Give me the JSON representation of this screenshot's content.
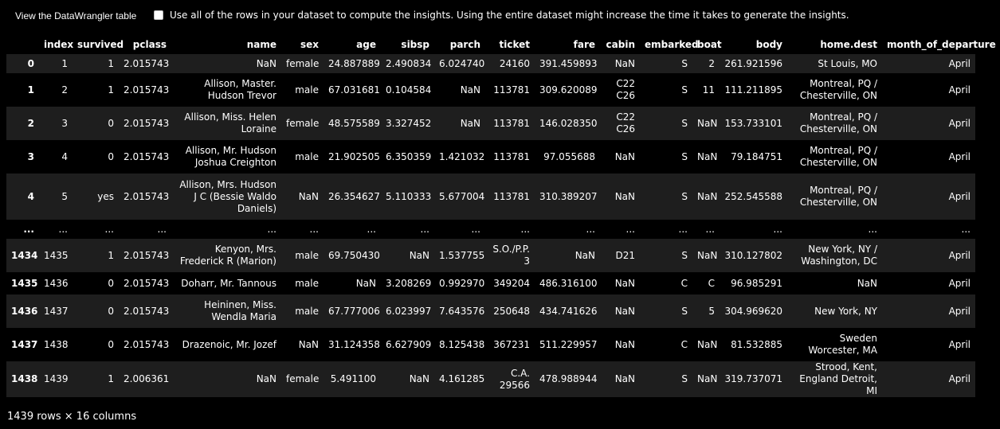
{
  "toolbar": {
    "view_button_label": "View the DataWrangler table",
    "checkbox_label": "Use all of the rows in your dataset to compute the insights. Using the entire dataset might increase the time it takes to generate the insights."
  },
  "table": {
    "columns": [
      "",
      "index",
      "survived",
      "pclass",
      "name",
      "sex",
      "age",
      "sibsp",
      "parch",
      "ticket",
      "fare",
      "cabin",
      "embarked",
      "boat",
      "body",
      "home.dest",
      "month_of_departure"
    ],
    "rows": [
      [
        "0",
        "1",
        "1",
        "2.015743",
        "NaN",
        "female",
        "24.887889",
        "2.490834",
        "6.024740",
        "24160",
        "391.459893",
        "NaN",
        "S",
        "2",
        "261.921596",
        "St Louis, MO",
        "April"
      ],
      [
        "1",
        "2",
        "1",
        "2.015743",
        "Allison, Master. Hudson Trevor",
        "male",
        "67.031681",
        "0.104584",
        "NaN",
        "113781",
        "309.620089",
        "C22 C26",
        "S",
        "11",
        "111.211895",
        "Montreal, PQ / Chesterville, ON",
        "April"
      ],
      [
        "2",
        "3",
        "0",
        "2.015743",
        "Allison, Miss. Helen Loraine",
        "female",
        "48.575589",
        "3.327452",
        "NaN",
        "113781",
        "146.028350",
        "C22 C26",
        "S",
        "NaN",
        "153.733101",
        "Montreal, PQ / Chesterville, ON",
        "April"
      ],
      [
        "3",
        "4",
        "0",
        "2.015743",
        "Allison, Mr. Hudson Joshua Creighton",
        "male",
        "21.902505",
        "6.350359",
        "1.421032",
        "113781",
        "97.055688",
        "NaN",
        "S",
        "NaN",
        "79.184751",
        "Montreal, PQ / Chesterville, ON",
        "April"
      ],
      [
        "4",
        "5",
        "yes",
        "2.015743",
        "Allison, Mrs. Hudson J C (Bessie Waldo Daniels)",
        "NaN",
        "26.354627",
        "5.110333",
        "5.677004",
        "113781",
        "310.389207",
        "NaN",
        "S",
        "NaN",
        "252.545588",
        "Montreal, PQ / Chesterville, ON",
        "April"
      ],
      [
        "...",
        "...",
        "...",
        "...",
        "...",
        "...",
        "...",
        "...",
        "...",
        "...",
        "...",
        "...",
        "...",
        "...",
        "...",
        "...",
        "..."
      ],
      [
        "1434",
        "1435",
        "1",
        "2.015743",
        "Kenyon, Mrs. Frederick R (Marion)",
        "male",
        "69.750430",
        "NaN",
        "1.537755",
        "S.O./P.P. 3",
        "NaN",
        "D21",
        "S",
        "NaN",
        "310.127802",
        "New York, NY / Washington, DC",
        "April"
      ],
      [
        "1435",
        "1436",
        "0",
        "2.015743",
        "Doharr, Mr. Tannous",
        "male",
        "NaN",
        "3.208269",
        "0.992970",
        "349204",
        "486.316100",
        "NaN",
        "C",
        "C",
        "96.985291",
        "NaN",
        "April"
      ],
      [
        "1436",
        "1437",
        "0",
        "2.015743",
        "Heininen, Miss. Wendla Maria",
        "male",
        "67.777006",
        "6.023997",
        "7.643576",
        "250648",
        "434.741626",
        "NaN",
        "S",
        "5",
        "304.969620",
        "New York, NY",
        "April"
      ],
      [
        "1437",
        "1438",
        "0",
        "2.015743",
        "Drazenoic, Mr. Jozef",
        "NaN",
        "31.124358",
        "6.627909",
        "8.125438",
        "367231",
        "511.229957",
        "NaN",
        "C",
        "NaN",
        "81.532885",
        "Sweden Worcester, MA",
        "April"
      ],
      [
        "1438",
        "1439",
        "1",
        "2.006361",
        "NaN",
        "female",
        "5.491100",
        "NaN",
        "4.161285",
        "C.A. 29566",
        "478.988944",
        "NaN",
        "S",
        "NaN",
        "319.737071",
        "Strood, Kent, England Detroit, MI",
        "April"
      ]
    ]
  },
  "footer": {
    "summary": "1439 rows × 16 columns"
  }
}
